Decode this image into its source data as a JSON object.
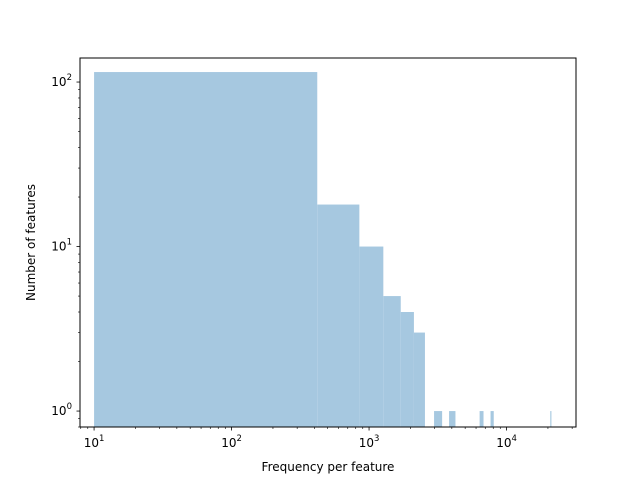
{
  "chart_data": {
    "type": "bar",
    "title": "",
    "xlabel": "Frequency per feature",
    "ylabel": "Number of features",
    "xscale": "log",
    "yscale": "log",
    "xlim": [
      7.9,
      32000
    ],
    "ylim": [
      0.8,
      140
    ],
    "bar_color": "#a6c8e0",
    "grid": false,
    "legend": false,
    "x_ticks": [
      {
        "value": 10,
        "base": "10",
        "exp": "1"
      },
      {
        "value": 100,
        "base": "10",
        "exp": "2"
      },
      {
        "value": 1000,
        "base": "10",
        "exp": "3"
      },
      {
        "value": 10000,
        "base": "10",
        "exp": "4"
      }
    ],
    "y_ticks": [
      {
        "value": 1,
        "base": "10",
        "exp": "0"
      },
      {
        "value": 10,
        "base": "10",
        "exp": "1"
      },
      {
        "value": 100,
        "base": "10",
        "exp": "2"
      }
    ],
    "bins": [
      {
        "x0": 10,
        "x1": 420,
        "count": 115
      },
      {
        "x0": 420,
        "x1": 850,
        "count": 18
      },
      {
        "x0": 850,
        "x1": 1270,
        "count": 10
      },
      {
        "x0": 1270,
        "x1": 1700,
        "count": 5
      },
      {
        "x0": 1700,
        "x1": 2120,
        "count": 4
      },
      {
        "x0": 2120,
        "x1": 2550,
        "count": 3
      },
      {
        "x0": 2970,
        "x1": 3400,
        "count": 1
      },
      {
        "x0": 3820,
        "x1": 4250,
        "count": 1
      },
      {
        "x0": 6370,
        "x1": 6800,
        "count": 1
      },
      {
        "x0": 7650,
        "x1": 8070,
        "count": 1
      },
      {
        "x0": 20800,
        "x1": 21200,
        "count": 1
      }
    ]
  }
}
